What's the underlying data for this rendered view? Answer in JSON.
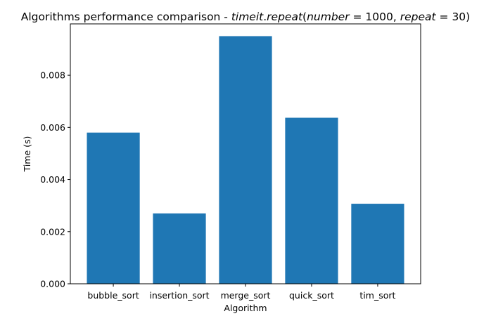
{
  "chart_data": {
    "type": "bar",
    "title": "Algorithms performance comparison - timeit.repeat(number = 1000, repeat = 30)",
    "title_parts": {
      "prefix": "Algorithms performance comparison - ",
      "math": [
        {
          "t": "timeit",
          "it": true
        },
        {
          "t": ".",
          "it": false
        },
        {
          "t": "repeat",
          "it": true
        },
        {
          "t": "(",
          "it": false
        },
        {
          "t": "number",
          "it": true
        },
        {
          "t": " = 1000, ",
          "it": false
        },
        {
          "t": "repeat",
          "it": true
        },
        {
          "t": " = 30)",
          "it": false
        }
      ]
    },
    "xlabel": "Algorithm",
    "ylabel": "Time (s)",
    "categories": [
      "bubble_sort",
      "insertion_sort",
      "merge_sort",
      "quick_sort",
      "tim_sort"
    ],
    "values": [
      0.0058,
      0.0027,
      0.0095,
      0.00637,
      0.00307
    ],
    "ylim": [
      0,
      0.00997
    ],
    "yticks": [
      0.0,
      0.002,
      0.004,
      0.006,
      0.008
    ],
    "ytick_labels": [
      "0.000",
      "0.002",
      "0.004",
      "0.006",
      "0.008"
    ],
    "bar_color": "#1f77b4",
    "grid": false,
    "legend": false
  }
}
